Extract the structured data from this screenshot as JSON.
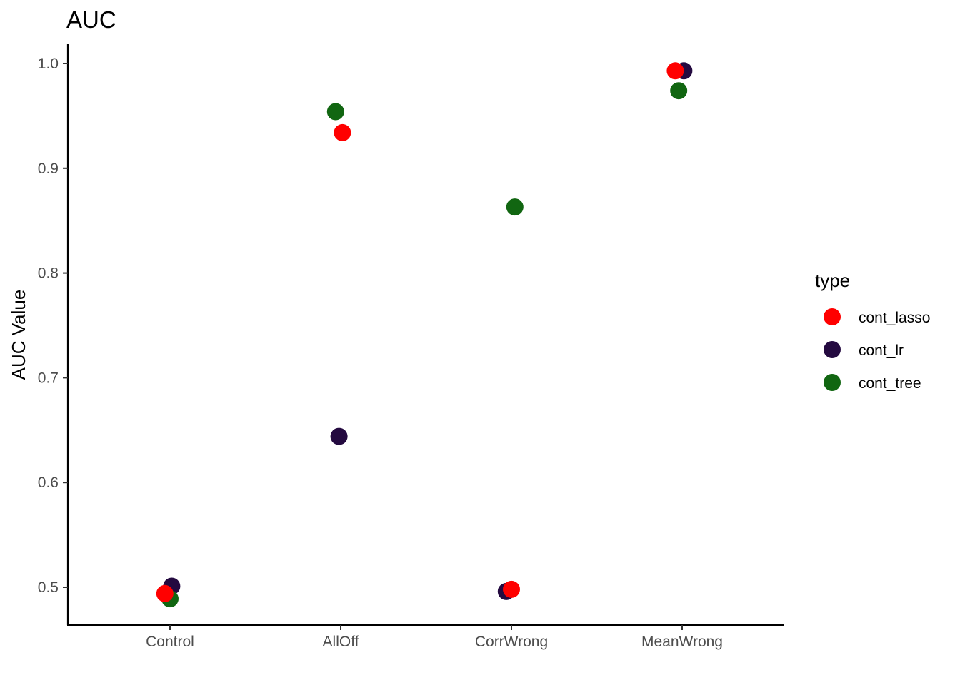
{
  "chart_data": {
    "type": "scatter",
    "title": "AUC",
    "xlabel": "",
    "ylabel": "AUC Value",
    "categories": [
      "Control",
      "AllOff",
      "CorrWrong",
      "MeanWrong"
    ],
    "yticks": [
      "0.5",
      "0.6",
      "0.7",
      "0.8",
      "0.9",
      "1.0"
    ],
    "ylim": [
      0.465,
      1.018
    ],
    "grid": false,
    "legend": {
      "title": "type",
      "position": "right"
    },
    "series": [
      {
        "name": "cont_lasso",
        "color": "#ff0000",
        "points": [
          {
            "category": "Control",
            "jitter": -0.03,
            "y": 0.494
          },
          {
            "category": "AllOff",
            "jitter": 0.01,
            "y": 0.934
          },
          {
            "category": "CorrWrong",
            "jitter": 0.0,
            "y": 0.498
          },
          {
            "category": "MeanWrong",
            "jitter": -0.04,
            "y": 0.993
          }
        ]
      },
      {
        "name": "cont_lr",
        "color": "#240a40",
        "points": [
          {
            "category": "Control",
            "jitter": 0.01,
            "y": 0.501
          },
          {
            "category": "AllOff",
            "jitter": -0.01,
            "y": 0.644
          },
          {
            "category": "CorrWrong",
            "jitter": -0.03,
            "y": 0.496
          },
          {
            "category": "MeanWrong",
            "jitter": 0.01,
            "y": 0.993
          }
        ]
      },
      {
        "name": "cont_tree",
        "color": "#116611",
        "points": [
          {
            "category": "Control",
            "jitter": 0.0,
            "y": 0.489
          },
          {
            "category": "AllOff",
            "jitter": -0.03,
            "y": 0.954
          },
          {
            "category": "CorrWrong",
            "jitter": 0.02,
            "y": 0.863
          },
          {
            "category": "MeanWrong",
            "jitter": -0.02,
            "y": 0.974
          }
        ]
      }
    ]
  }
}
